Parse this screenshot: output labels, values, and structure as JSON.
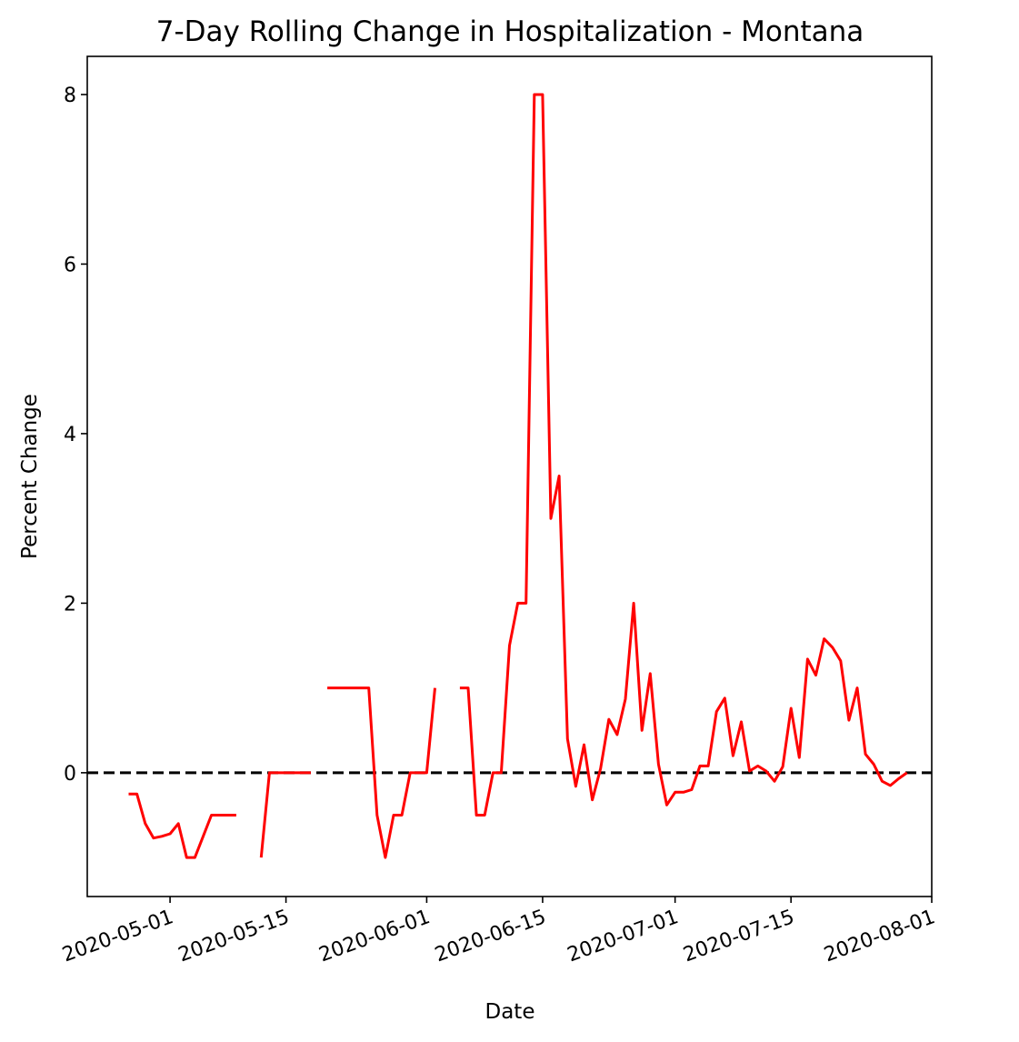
{
  "chart_data": {
    "type": "line",
    "title": "7-Day Rolling Change in Hospitalization - Montana",
    "xlabel": "Date",
    "ylabel": "Percent Change",
    "x_range": [
      "2020-04-21",
      "2020-08-01"
    ],
    "ylim": [
      -1.46,
      8.45
    ],
    "x_ticks": [
      "2020-05-01",
      "2020-05-15",
      "2020-06-01",
      "2020-06-15",
      "2020-07-01",
      "2020-07-15",
      "2020-08-01"
    ],
    "y_ticks": [
      0,
      2,
      4,
      6,
      8
    ],
    "grid": false,
    "legend": "none",
    "reference_line": {
      "y": 0,
      "style": "dashed",
      "color": "#000000"
    },
    "series": [
      {
        "color": "#ff0000",
        "points": [
          [
            "2020-04-26",
            -0.25
          ],
          [
            "2020-04-27",
            -0.25
          ],
          [
            "2020-04-28",
            -0.6
          ],
          [
            "2020-04-29",
            -0.77
          ],
          [
            "2020-04-30",
            -0.75
          ],
          [
            "2020-05-01",
            -0.72
          ],
          [
            "2020-05-02",
            -0.6
          ],
          [
            "2020-05-03",
            -1.0
          ],
          [
            "2020-05-04",
            -1.0
          ],
          [
            "2020-05-05",
            -0.75
          ],
          [
            "2020-05-06",
            -0.5
          ],
          [
            "2020-05-07",
            -0.5
          ],
          [
            "2020-05-08",
            -0.5
          ],
          [
            "2020-05-09",
            -0.5
          ],
          [
            "2020-05-10",
            null
          ],
          [
            "2020-05-11",
            null
          ],
          [
            "2020-05-12",
            -1.0
          ],
          [
            "2020-05-13",
            0.0
          ],
          [
            "2020-05-14",
            0.0
          ],
          [
            "2020-05-15",
            0.0
          ],
          [
            "2020-05-16",
            0.0
          ],
          [
            "2020-05-17",
            0.0
          ],
          [
            "2020-05-18",
            0.0
          ],
          [
            "2020-05-19",
            null
          ],
          [
            "2020-05-20",
            1.0
          ],
          [
            "2020-05-21",
            1.0
          ],
          [
            "2020-05-22",
            1.0
          ],
          [
            "2020-05-23",
            1.0
          ],
          [
            "2020-05-24",
            1.0
          ],
          [
            "2020-05-25",
            1.0
          ],
          [
            "2020-05-26",
            -0.5
          ],
          [
            "2020-05-27",
            -1.0
          ],
          [
            "2020-05-28",
            -0.5
          ],
          [
            "2020-05-29",
            -0.5
          ],
          [
            "2020-05-30",
            0.0
          ],
          [
            "2020-05-31",
            0.0
          ],
          [
            "2020-06-01",
            0.0
          ],
          [
            "2020-06-02",
            1.0
          ],
          [
            "2020-06-03",
            null
          ],
          [
            "2020-06-04",
            null
          ],
          [
            "2020-06-05",
            1.0
          ],
          [
            "2020-06-06",
            1.0
          ],
          [
            "2020-06-07",
            -0.5
          ],
          [
            "2020-06-08",
            -0.5
          ],
          [
            "2020-06-09",
            0.0
          ],
          [
            "2020-06-10",
            0.0
          ],
          [
            "2020-06-11",
            1.5
          ],
          [
            "2020-06-12",
            2.0
          ],
          [
            "2020-06-13",
            2.0
          ],
          [
            "2020-06-14",
            8.0
          ],
          [
            "2020-06-15",
            8.0
          ],
          [
            "2020-06-16",
            3.0
          ],
          [
            "2020-06-17",
            3.5
          ],
          [
            "2020-06-18",
            0.4
          ],
          [
            "2020-06-19",
            -0.16
          ],
          [
            "2020-06-20",
            0.33
          ],
          [
            "2020-06-21",
            -0.32
          ],
          [
            "2020-06-22",
            0.05
          ],
          [
            "2020-06-23",
            0.63
          ],
          [
            "2020-06-24",
            0.45
          ],
          [
            "2020-06-25",
            0.87
          ],
          [
            "2020-06-26",
            2.0
          ],
          [
            "2020-06-27",
            0.5
          ],
          [
            "2020-06-28",
            1.17
          ],
          [
            "2020-06-29",
            0.1
          ],
          [
            "2020-06-30",
            -0.38
          ],
          [
            "2020-07-01",
            -0.23
          ],
          [
            "2020-07-02",
            -0.23
          ],
          [
            "2020-07-03",
            -0.2
          ],
          [
            "2020-07-04",
            0.08
          ],
          [
            "2020-07-05",
            0.08
          ],
          [
            "2020-07-06",
            0.72
          ],
          [
            "2020-07-07",
            0.88
          ],
          [
            "2020-07-08",
            0.2
          ],
          [
            "2020-07-09",
            0.6
          ],
          [
            "2020-07-10",
            0.02
          ],
          [
            "2020-07-11",
            0.08
          ],
          [
            "2020-07-12",
            0.02
          ],
          [
            "2020-07-13",
            -0.1
          ],
          [
            "2020-07-14",
            0.07
          ],
          [
            "2020-07-15",
            0.76
          ],
          [
            "2020-07-16",
            0.18
          ],
          [
            "2020-07-17",
            1.34
          ],
          [
            "2020-07-18",
            1.15
          ],
          [
            "2020-07-19",
            1.58
          ],
          [
            "2020-07-20",
            1.48
          ],
          [
            "2020-07-21",
            1.32
          ],
          [
            "2020-07-22",
            0.62
          ],
          [
            "2020-07-23",
            1.0
          ],
          [
            "2020-07-24",
            0.22
          ],
          [
            "2020-07-25",
            0.1
          ],
          [
            "2020-07-26",
            -0.1
          ],
          [
            "2020-07-27",
            -0.15
          ],
          [
            "2020-07-28",
            -0.07
          ],
          [
            "2020-07-29",
            0.0
          ]
        ]
      }
    ]
  }
}
